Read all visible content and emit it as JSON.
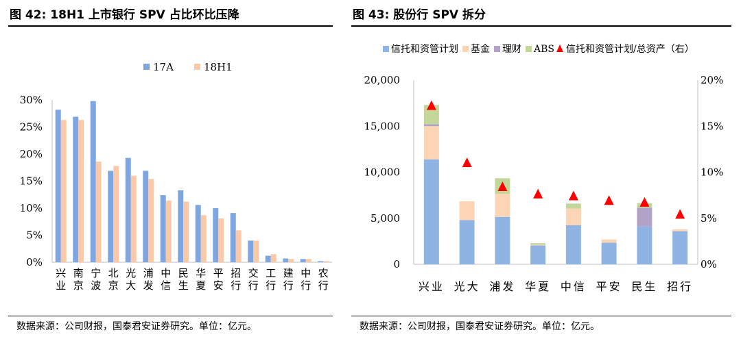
{
  "left": {
    "title": "图 42:  18H1 上市银行 SPV 占比环比压降",
    "source": "数据来源：公司财报，国泰君安证券研究。单位：亿元。",
    "chart_data": {
      "type": "bar",
      "categories": [
        "兴业",
        "南京",
        "宁波",
        "北京",
        "光大",
        "浦发",
        "中信",
        "民生",
        "华夏",
        "平安",
        "招行",
        "交行",
        "工行",
        "建行",
        "中行",
        "农行"
      ],
      "series": [
        {
          "name": "17A",
          "color": "#7ea6e0",
          "values": [
            28.2,
            26.9,
            29.8,
            16.9,
            19.3,
            16.9,
            12.4,
            13.3,
            10.6,
            10.0,
            9.1,
            4.0,
            1.2,
            0.7,
            0.6,
            0.2
          ]
        },
        {
          "name": "18H1",
          "color": "#fbc9a8",
          "values": [
            26.3,
            26.3,
            18.6,
            17.8,
            16.0,
            15.4,
            11.4,
            11.2,
            8.7,
            8.1,
            5.9,
            4.0,
            1.5,
            0.6,
            0.6,
            0.2
          ]
        }
      ],
      "yticks": [
        "0%",
        "5%",
        "10%",
        "15%",
        "20%",
        "25%",
        "30%"
      ],
      "ylim": [
        0,
        30
      ],
      "legend": "top"
    }
  },
  "right": {
    "title": "图 43:  股份行 SPV 拆分",
    "source": "数据来源：公司财报，国泰君安证券研究。单位：亿元。",
    "chart_data": {
      "type": "bar",
      "stacked": true,
      "categories": [
        "兴业",
        "光大",
        "浦发",
        "华夏",
        "中信",
        "平安",
        "民生",
        "招行"
      ],
      "series": [
        {
          "name": "信托和资管计划",
          "color": "#8fb4e3",
          "values": [
            11400,
            4800,
            5150,
            2050,
            4250,
            2350,
            4100,
            3600
          ]
        },
        {
          "name": "基金",
          "color": "#fbd5b5",
          "values": [
            3600,
            2050,
            2500,
            100,
            1800,
            350,
            0,
            200
          ]
        },
        {
          "name": "理财",
          "color": "#b3a2c7",
          "values": [
            200,
            0,
            0,
            0,
            0,
            0,
            2050,
            0
          ]
        },
        {
          "name": "ABS",
          "color": "#c4d79b",
          "values": [
            2100,
            0,
            1700,
            150,
            550,
            0,
            500,
            0
          ]
        }
      ],
      "line_series": {
        "name": "信托和资管计划/总资产（右）",
        "color": "#ff0000",
        "marker": "triangle",
        "values": [
          17.2,
          11.0,
          8.4,
          7.6,
          7.4,
          6.9,
          6.7,
          5.4
        ]
      },
      "yticks_left": [
        "0",
        "5,000",
        "10,000",
        "15,000",
        "20,000"
      ],
      "ylim_left": [
        0,
        20000
      ],
      "yticks_right": [
        "0%",
        "5%",
        "10%",
        "15%",
        "20%"
      ],
      "ylim_right": [
        0,
        20
      ],
      "legend": "top"
    }
  }
}
